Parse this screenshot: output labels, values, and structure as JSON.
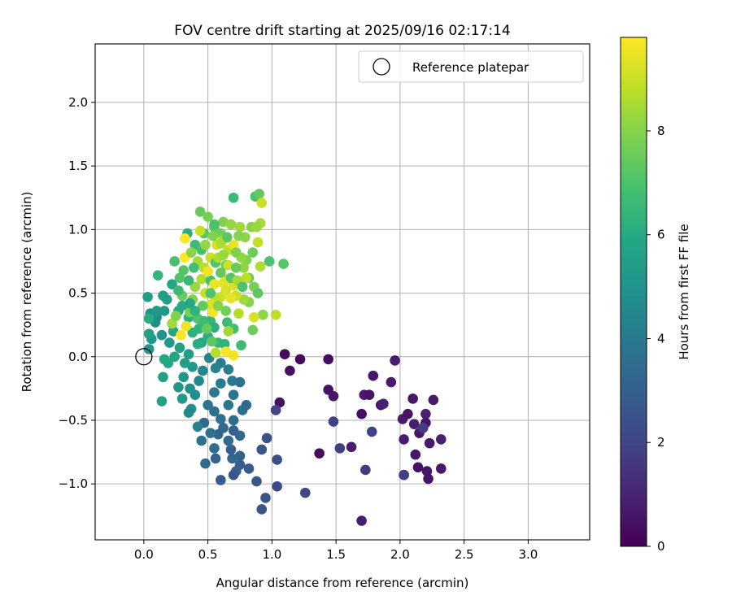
{
  "chart_data": {
    "type": "scatter",
    "title": "FOV centre drift starting at 2025/09/16 02:17:14",
    "xlabel": "Angular distance from reference (arcmin)",
    "ylabel": "Rotation from reference (arcmin)",
    "xlim": [
      -0.38,
      3.48
    ],
    "ylim": [
      -1.44,
      2.46
    ],
    "xticks": [
      {
        "value": 0.0,
        "label": "0.0"
      },
      {
        "value": 0.5,
        "label": "0.5"
      },
      {
        "value": 1.0,
        "label": "1.0"
      },
      {
        "value": 1.5,
        "label": "1.5"
      },
      {
        "value": 2.0,
        "label": "2.0"
      },
      {
        "value": 2.5,
        "label": "2.5"
      },
      {
        "value": 3.0,
        "label": "3.0"
      }
    ],
    "yticks": [
      {
        "value": -1.0,
        "label": "−1.0"
      },
      {
        "value": -0.5,
        "label": "−0.5"
      },
      {
        "value": 0.0,
        "label": "0.0"
      },
      {
        "value": 0.5,
        "label": "0.5"
      },
      {
        "value": 1.0,
        "label": "1.0"
      },
      {
        "value": 1.5,
        "label": "1.5"
      },
      {
        "value": 2.0,
        "label": "2.0"
      }
    ],
    "grid": true,
    "legend": {
      "position": "top-right",
      "entries": [
        "Reference platepar"
      ]
    },
    "reference_point": {
      "x": 0.0,
      "y": 0.0
    },
    "colorbar": {
      "label": "Hours from first FF file",
      "range": [
        0,
        9.8
      ],
      "ticks": [
        {
          "value": 0,
          "label": "0"
        },
        {
          "value": 2,
          "label": "2"
        },
        {
          "value": 4,
          "label": "4"
        },
        {
          "value": 6,
          "label": "6"
        },
        {
          "value": 8,
          "label": "8"
        }
      ],
      "colormap": "viridis"
    },
    "points": [
      [
        1.1,
        0.02,
        0.3
      ],
      [
        1.14,
        -0.11,
        0.4
      ],
      [
        1.22,
        -0.02,
        0.2
      ],
      [
        1.44,
        -0.02,
        0.3
      ],
      [
        1.44,
        -0.26,
        0.5
      ],
      [
        1.48,
        -0.31,
        0.6
      ],
      [
        1.72,
        -0.3,
        0.7
      ],
      [
        1.76,
        -0.3,
        0.5
      ],
      [
        1.79,
        -0.15,
        0.6
      ],
      [
        1.7,
        -0.45,
        0.4
      ],
      [
        1.62,
        -0.71,
        0.8
      ],
      [
        1.37,
        -0.76,
        0.3
      ],
      [
        1.85,
        -0.38,
        0.6
      ],
      [
        1.96,
        -0.03,
        0.8
      ],
      [
        1.93,
        -0.2,
        0.7
      ],
      [
        1.87,
        -0.37,
        0.9
      ],
      [
        2.1,
        -0.33,
        0.6
      ],
      [
        2.02,
        -0.49,
        0.7
      ],
      [
        2.06,
        -0.45,
        0.5
      ],
      [
        2.11,
        -0.53,
        0.8
      ],
      [
        2.15,
        -0.6,
        0.6
      ],
      [
        2.2,
        -0.45,
        0.9
      ],
      [
        2.26,
        -0.34,
        0.7
      ],
      [
        2.2,
        -0.52,
        0.5
      ],
      [
        2.03,
        -0.65,
        0.8
      ],
      [
        2.12,
        -0.77,
        0.6
      ],
      [
        2.23,
        -0.68,
        0.7
      ],
      [
        2.32,
        -0.65,
        0.9
      ],
      [
        2.14,
        -0.87,
        0.4
      ],
      [
        2.21,
        -0.9,
        0.6
      ],
      [
        2.22,
        -0.96,
        0.5
      ],
      [
        2.32,
        -0.88,
        0.7
      ],
      [
        2.03,
        -0.93,
        0.6
      ],
      [
        1.7,
        -1.29,
        0.8
      ],
      [
        1.06,
        -0.36,
        0.4
      ],
      [
        1.48,
        -0.51,
        1.9
      ],
      [
        1.53,
        -0.72,
        1.8
      ],
      [
        1.73,
        -0.89,
        1.7
      ],
      [
        1.78,
        -0.59,
        1.9
      ],
      [
        2.03,
        -0.93,
        1.8
      ],
      [
        2.18,
        -0.56,
        1.7
      ],
      [
        1.03,
        -0.42,
        2.0
      ],
      [
        1.26,
        -1.07,
        2.1
      ],
      [
        1.04,
        -1.02,
        2.2
      ],
      [
        1.04,
        -0.81,
        2.3
      ],
      [
        0.96,
        -0.64,
        2.4
      ],
      [
        0.92,
        -1.2,
        2.5
      ],
      [
        0.95,
        -1.11,
        2.6
      ],
      [
        0.88,
        -0.98,
        2.7
      ],
      [
        0.92,
        -0.73,
        2.5
      ],
      [
        0.82,
        -0.88,
        2.8
      ],
      [
        0.75,
        -0.85,
        2.9
      ],
      [
        0.72,
        -0.9,
        3.0
      ],
      [
        0.7,
        -0.93,
        2.6
      ],
      [
        0.75,
        -0.78,
        3.1
      ],
      [
        0.69,
        -0.8,
        3.2
      ],
      [
        0.68,
        -0.73,
        3.0
      ],
      [
        0.66,
        -0.66,
        3.3
      ],
      [
        0.62,
        -0.56,
        3.4
      ],
      [
        0.58,
        -0.61,
        3.2
      ],
      [
        0.55,
        -0.72,
        3.5
      ],
      [
        0.52,
        -0.6,
        3.6
      ],
      [
        0.47,
        -0.52,
        3.4
      ],
      [
        0.45,
        -0.66,
        3.7
      ],
      [
        0.48,
        -0.84,
        3.3
      ],
      [
        0.6,
        -0.97,
        2.9
      ],
      [
        0.56,
        -0.8,
        3.1
      ],
      [
        0.7,
        -0.58,
        3.0
      ],
      [
        0.75,
        -0.62,
        3.2
      ],
      [
        0.7,
        -0.5,
        3.5
      ],
      [
        0.6,
        -0.49,
        3.6
      ],
      [
        0.55,
        -0.43,
        3.7
      ],
      [
        0.5,
        -0.38,
        3.8
      ],
      [
        0.55,
        -0.28,
        3.9
      ],
      [
        0.6,
        -0.21,
        4.0
      ],
      [
        0.66,
        -0.38,
        3.9
      ],
      [
        0.7,
        -0.3,
        3.8
      ],
      [
        0.77,
        -0.42,
        3.6
      ],
      [
        0.8,
        -0.38,
        3.4
      ],
      [
        0.75,
        -0.2,
        3.7
      ],
      [
        0.69,
        -0.19,
        4.0
      ],
      [
        0.66,
        -0.1,
        4.1
      ],
      [
        0.6,
        -0.05,
        4.2
      ],
      [
        0.56,
        -0.09,
        4.3
      ],
      [
        0.51,
        -0.01,
        4.4
      ],
      [
        0.46,
        -0.11,
        4.5
      ],
      [
        0.43,
        -0.19,
        4.6
      ],
      [
        0.4,
        -0.3,
        4.7
      ],
      [
        0.37,
        -0.41,
        4.8
      ],
      [
        0.36,
        -0.25,
        4.9
      ],
      [
        0.31,
        -0.16,
        5.0
      ],
      [
        0.27,
        -0.24,
        5.1
      ],
      [
        0.3,
        -0.33,
        5.2
      ],
      [
        0.35,
        -0.44,
        4.6
      ],
      [
        0.42,
        -0.55,
        4.3
      ],
      [
        0.38,
        -0.08,
        5.3
      ],
      [
        0.35,
        0.02,
        5.4
      ],
      [
        0.32,
        -0.05,
        5.5
      ],
      [
        0.28,
        0.07,
        5.6
      ],
      [
        0.24,
        0.0,
        5.7
      ],
      [
        0.19,
        -0.05,
        5.8
      ],
      [
        0.16,
        -0.02,
        5.9
      ],
      [
        0.15,
        -0.16,
        5.5
      ],
      [
        0.14,
        -0.35,
        5.6
      ],
      [
        0.2,
        0.11,
        5.2
      ],
      [
        0.14,
        0.17,
        5.0
      ],
      [
        0.09,
        0.27,
        4.9
      ],
      [
        0.05,
        0.34,
        5.0
      ],
      [
        0.1,
        0.31,
        4.8
      ],
      [
        0.06,
        0.14,
        5.1
      ],
      [
        0.04,
        0.06,
        5.2
      ],
      [
        0.04,
        0.18,
        5.6
      ],
      [
        0.04,
        0.3,
        6.0
      ],
      [
        0.03,
        0.47,
        5.4
      ],
      [
        0.11,
        0.64,
        6.4
      ],
      [
        0.1,
        0.36,
        5.3
      ],
      [
        0.16,
        0.36,
        5.2
      ],
      [
        0.15,
        0.48,
        5.4
      ],
      [
        0.18,
        0.45,
        5.5
      ],
      [
        0.22,
        0.57,
        5.8
      ],
      [
        0.23,
        0.2,
        5.7
      ],
      [
        0.27,
        0.36,
        5.9
      ],
      [
        0.3,
        0.4,
        6.0
      ],
      [
        0.35,
        0.31,
        6.1
      ],
      [
        0.38,
        0.19,
        6.2
      ],
      [
        0.43,
        0.22,
        6.3
      ],
      [
        0.45,
        0.11,
        5.9
      ],
      [
        0.5,
        0.16,
        6.1
      ],
      [
        0.52,
        0.28,
        6.4
      ],
      [
        0.55,
        0.23,
        6.2
      ],
      [
        0.58,
        0.11,
        6.5
      ],
      [
        0.63,
        0.1,
        6.3
      ],
      [
        0.65,
        0.27,
        6.6
      ],
      [
        0.7,
        0.22,
        6.8
      ],
      [
        0.76,
        0.09,
        6.7
      ],
      [
        0.34,
        0.97,
        6.1
      ],
      [
        0.4,
        0.88,
        6.6
      ],
      [
        0.45,
        0.84,
        6.9
      ],
      [
        0.47,
        0.97,
        7.2
      ],
      [
        0.44,
        1.14,
        7.5
      ],
      [
        0.5,
        1.1,
        7.8
      ],
      [
        0.55,
        1.02,
        7.3
      ],
      [
        0.6,
        0.97,
        7.6
      ],
      [
        0.62,
        1.06,
        7.9
      ],
      [
        0.68,
        1.04,
        8.2
      ],
      [
        0.7,
        1.25,
        6.6
      ],
      [
        0.75,
        1.02,
        8.4
      ],
      [
        0.79,
        0.94,
        8.1
      ],
      [
        0.84,
        1.02,
        8.0
      ],
      [
        0.87,
        1.26,
        7.0
      ],
      [
        0.9,
        1.28,
        7.4
      ],
      [
        0.92,
        1.21,
        9.0
      ],
      [
        0.91,
        1.05,
        8.5
      ],
      [
        0.88,
        1.02,
        8.3
      ],
      [
        0.89,
        0.9,
        8.9
      ],
      [
        0.85,
        0.82,
        7.6
      ],
      [
        0.8,
        0.76,
        7.9
      ],
      [
        0.78,
        0.7,
        8.2
      ],
      [
        0.82,
        0.62,
        7.5
      ],
      [
        0.86,
        0.55,
        7.8
      ],
      [
        0.89,
        0.5,
        7.3
      ],
      [
        0.91,
        0.71,
        8.6
      ],
      [
        0.98,
        0.75,
        7.0
      ],
      [
        1.09,
        0.73,
        7.2
      ],
      [
        1.03,
        0.33,
        8.8
      ],
      [
        0.93,
        0.33,
        8.1
      ],
      [
        0.86,
        0.31,
        9.2
      ],
      [
        0.85,
        0.21,
        7.6
      ],
      [
        0.82,
        0.43,
        8.0
      ],
      [
        0.78,
        0.45,
        8.4
      ],
      [
        0.74,
        0.34,
        8.7
      ],
      [
        0.72,
        0.48,
        9.0
      ],
      [
        0.7,
        0.56,
        9.3
      ],
      [
        0.66,
        0.61,
        8.9
      ],
      [
        0.62,
        0.58,
        9.4
      ],
      [
        0.6,
        0.47,
        9.1
      ],
      [
        0.56,
        0.45,
        8.8
      ],
      [
        0.54,
        0.35,
        9.6
      ],
      [
        0.52,
        0.41,
        9.3
      ],
      [
        0.48,
        0.5,
        9.0
      ],
      [
        0.45,
        0.61,
        8.6
      ],
      [
        0.4,
        0.55,
        8.3
      ],
      [
        0.38,
        0.45,
        8.0
      ],
      [
        0.36,
        0.35,
        7.8
      ],
      [
        0.33,
        0.24,
        9.5
      ],
      [
        0.29,
        0.17,
        9.7
      ],
      [
        0.22,
        0.26,
        8.4
      ],
      [
        0.25,
        0.32,
        7.9
      ],
      [
        0.3,
        0.48,
        7.5
      ],
      [
        0.31,
        0.68,
        7.2
      ],
      [
        0.32,
        0.78,
        9.8
      ],
      [
        0.32,
        0.93,
        9.8
      ],
      [
        0.37,
        0.82,
        8.1
      ],
      [
        0.42,
        0.75,
        8.4
      ],
      [
        0.47,
        0.7,
        8.7
      ],
      [
        0.52,
        0.78,
        9.0
      ],
      [
        0.57,
        0.88,
        9.2
      ],
      [
        0.62,
        0.92,
        8.5
      ],
      [
        0.66,
        0.84,
        8.8
      ],
      [
        0.7,
        0.88,
        9.5
      ],
      [
        0.74,
        0.95,
        8.0
      ],
      [
        0.64,
        0.72,
        7.7
      ],
      [
        0.6,
        0.66,
        7.4
      ],
      [
        0.56,
        0.74,
        7.1
      ],
      [
        0.52,
        0.6,
        6.9
      ],
      [
        0.5,
        0.67,
        9.6
      ],
      [
        0.55,
        0.57,
        9.5
      ],
      [
        0.58,
        0.78,
        8.6
      ],
      [
        0.62,
        0.8,
        8.3
      ],
      [
        0.44,
        0.99,
        9.0
      ],
      [
        0.48,
        0.88,
        8.2
      ],
      [
        0.54,
        0.95,
        7.9
      ],
      [
        0.6,
        0.89,
        8.6
      ],
      [
        0.66,
        0.72,
        9.1
      ],
      [
        0.72,
        0.7,
        7.5
      ],
      [
        0.76,
        0.78,
        8.2
      ],
      [
        0.8,
        0.62,
        8.8
      ],
      [
        0.68,
        0.62,
        7.2
      ],
      [
        0.64,
        0.52,
        9.2
      ],
      [
        0.58,
        0.4,
        8.0
      ],
      [
        0.64,
        0.36,
        7.7
      ],
      [
        0.68,
        0.46,
        9.4
      ],
      [
        0.52,
        0.5,
        7.1
      ],
      [
        0.46,
        0.4,
        7.4
      ],
      [
        0.42,
        0.3,
        7.0
      ],
      [
        0.47,
        0.28,
        6.7
      ],
      [
        0.4,
        0.36,
        6.3
      ],
      [
        0.35,
        0.6,
        6.5
      ],
      [
        0.39,
        0.7,
        6.8
      ],
      [
        0.27,
        0.52,
        6.6
      ],
      [
        0.28,
        0.62,
        7.1
      ],
      [
        0.24,
        0.75,
        6.9
      ],
      [
        0.36,
        0.42,
        5.8
      ],
      [
        0.55,
        1.04,
        7.0
      ],
      [
        0.65,
        0.94,
        7.3
      ],
      [
        0.72,
        0.82,
        7.9
      ],
      [
        0.73,
        0.6,
        8.5
      ],
      [
        0.77,
        0.55,
        7.0
      ],
      [
        0.64,
        0.04,
        9.7
      ],
      [
        0.7,
        0.01,
        9.6
      ],
      [
        0.56,
        0.03,
        8.7
      ],
      [
        0.66,
        0.2,
        8.4
      ],
      [
        0.42,
        0.1,
        6.1
      ],
      [
        0.49,
        0.22,
        7.5
      ],
      [
        0.53,
        0.12,
        7.3
      ]
    ]
  }
}
